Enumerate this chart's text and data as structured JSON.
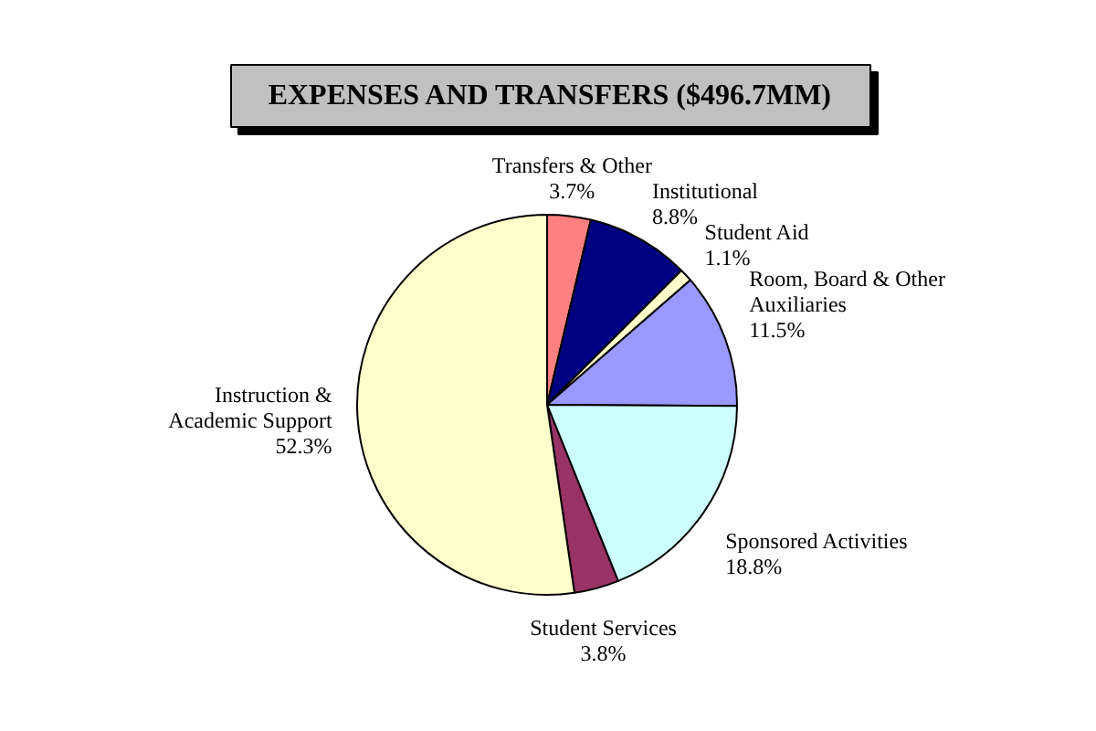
{
  "chart_data": {
    "type": "pie",
    "title": "EXPENSES AND TRANSFERS ($496.7MM)",
    "categories": [
      "Transfers & Other",
      "Institutional",
      "Student Aid",
      "Room, Board & Other Auxiliaries",
      "Sponsored Activities",
      "Student Services",
      "Instruction & Academic Support"
    ],
    "values": [
      3.7,
      8.8,
      1.1,
      11.5,
      18.8,
      3.8,
      52.3
    ],
    "value_labels": [
      "3.7%",
      "8.8%",
      "1.1%",
      "11.5%",
      "18.8%",
      "3.8%",
      "52.3%"
    ],
    "colors": [
      "#ff8080",
      "#000080",
      "#ffffcc",
      "#9999ff",
      "#ccffff",
      "#993366",
      "#ffffcc"
    ]
  }
}
